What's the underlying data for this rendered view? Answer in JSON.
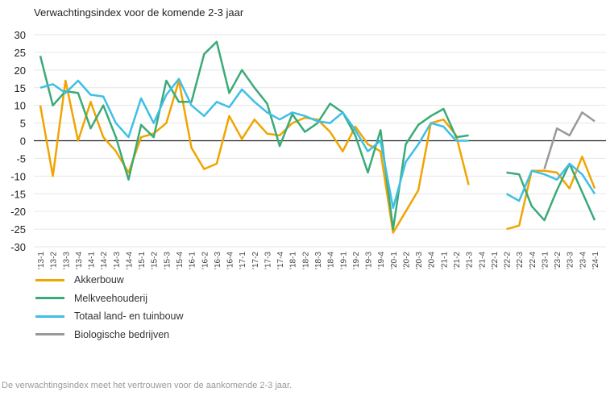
{
  "chart_data": {
    "type": "line",
    "title": "Verwachtingsindex voor de komende 2-3 jaar",
    "xlabel": "",
    "ylabel": "",
    "ylim": [
      -30,
      30
    ],
    "yticks": [
      30,
      25,
      20,
      15,
      10,
      5,
      0,
      -5,
      -10,
      -15,
      -20,
      -25,
      -30
    ],
    "grid": true,
    "legend_position": "bottom-left",
    "categories": [
      "'13-1",
      "'13-2",
      "'13-3",
      "'13-4",
      "'14-1",
      "'14-2",
      "'14-3",
      "'14-4",
      "'15-1",
      "'15-2",
      "'15-3",
      "'15-4",
      "'16-1",
      "'16-2",
      "'16-3",
      "'16-4",
      "'17-1",
      "'17-2",
      "'17-3",
      "'17-4",
      "'18-1",
      "'18-2",
      "'18-3",
      "'18-4",
      "'19-1",
      "'19-2",
      "'19-3",
      "'19-4",
      "'20-1",
      "'20-2",
      "'20-3",
      "'20-4",
      "'21-1",
      "'21-2",
      "'21-3",
      "'21-4",
      "'22-1",
      "'22-2",
      "'22-3",
      "'22-4",
      "'23-1",
      "'23-2",
      "'23-3",
      "'23-4",
      "'24-1"
    ],
    "series": [
      {
        "name": "Akkerbouw",
        "color": "#f0a500",
        "values": [
          10,
          -10,
          17,
          0,
          11,
          1,
          -3,
          -9,
          1,
          2,
          5,
          17,
          -2,
          -8,
          -6.5,
          7,
          0.5,
          6,
          2,
          1.5,
          5,
          6.5,
          6,
          2.5,
          -3,
          4,
          -1,
          -3,
          -26,
          -20,
          -14,
          5,
          6,
          1.5,
          -12.5,
          null,
          null,
          -25,
          -24,
          -8.5,
          -8.5,
          -9,
          -13.5,
          -4.5,
          -13.5
        ]
      },
      {
        "name": "Melkveehouderij",
        "color": "#3aaa78",
        "values": [
          24,
          10,
          14,
          13.5,
          3.5,
          10,
          1,
          -11,
          4.5,
          1,
          17,
          11,
          11,
          24.5,
          28,
          13.5,
          20,
          15,
          10.5,
          -1.5,
          7.5,
          2.5,
          5,
          10.5,
          8,
          1.5,
          -9,
          3,
          -25,
          -1,
          4.5,
          7,
          9,
          1,
          1.5,
          null,
          null,
          -9,
          -9.5,
          -18.5,
          -22.5,
          -14,
          -6.5,
          -14.5,
          -22.5
        ]
      },
      {
        "name": "Totaal land- en tuinbouw",
        "color": "#3fbfe6",
        "values": [
          15,
          16,
          13.5,
          17,
          13,
          12.5,
          5,
          1,
          12,
          5,
          13,
          17.5,
          10,
          7,
          11,
          9.5,
          14.5,
          11,
          8,
          6,
          8,
          7,
          5.5,
          5,
          8,
          3,
          -3,
          0,
          -19,
          -6,
          -1,
          5,
          4,
          0,
          0,
          null,
          null,
          -15,
          -17,
          -8.5,
          -9.5,
          -11,
          -6.5,
          -9.5,
          -15
        ]
      },
      {
        "name": "Biologische bedrijven",
        "color": "#999999",
        "values": [
          null,
          null,
          null,
          null,
          null,
          null,
          null,
          null,
          null,
          null,
          null,
          null,
          null,
          null,
          null,
          null,
          null,
          null,
          null,
          null,
          null,
          null,
          null,
          null,
          null,
          null,
          null,
          null,
          null,
          null,
          null,
          null,
          null,
          null,
          null,
          null,
          null,
          null,
          null,
          null,
          -8,
          3.5,
          1.5,
          8,
          5.5
        ]
      }
    ]
  },
  "footnote": "De verwachtingsindex meet het vertrouwen voor de aankomende 2-3 jaar."
}
